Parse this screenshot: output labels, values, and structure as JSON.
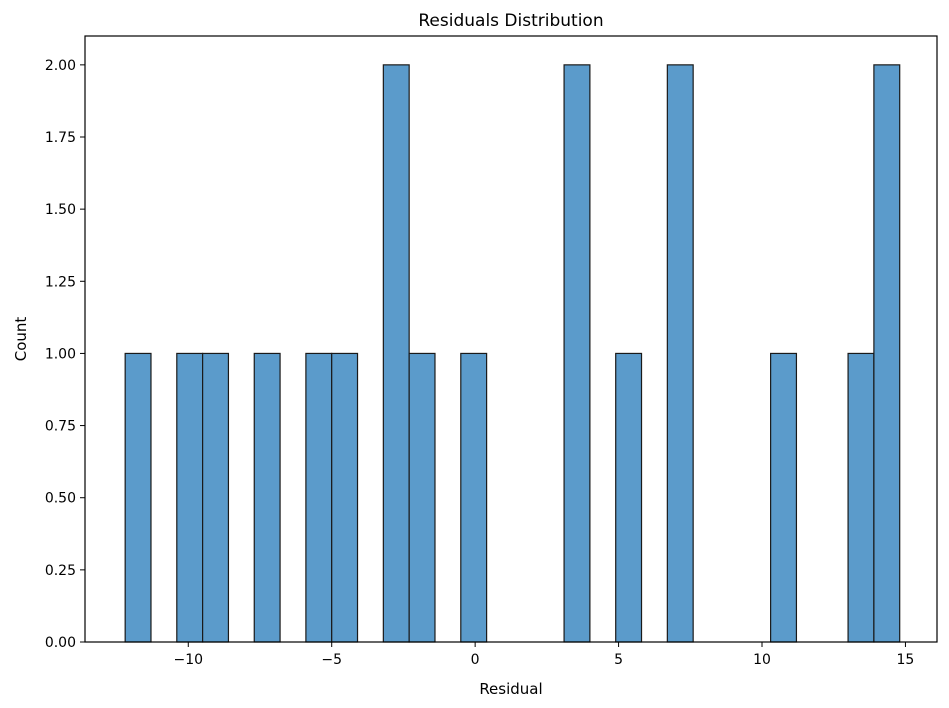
{
  "chart_data": {
    "type": "bar",
    "title": "Residuals Distribution",
    "xlabel": "Residual",
    "ylabel": "Count",
    "xlim": [
      -13.6,
      16.1
    ],
    "ylim": [
      0,
      2.1
    ],
    "x_ticks": [
      {
        "value": -10,
        "label": "−10"
      },
      {
        "value": -5,
        "label": "−5"
      },
      {
        "value": 0,
        "label": "0"
      },
      {
        "value": 5,
        "label": "5"
      },
      {
        "value": 10,
        "label": "10"
      },
      {
        "value": 15,
        "label": "15"
      }
    ],
    "y_ticks": [
      {
        "value": 0,
        "label": "0.00"
      },
      {
        "value": 0.25,
        "label": "0.25"
      },
      {
        "value": 0.5,
        "label": "0.50"
      },
      {
        "value": 0.75,
        "label": "0.75"
      },
      {
        "value": 1.0,
        "label": "1.00"
      },
      {
        "value": 1.25,
        "label": "1.25"
      },
      {
        "value": 1.5,
        "label": "1.50"
      },
      {
        "value": 1.75,
        "label": "1.75"
      },
      {
        "value": 2.0,
        "label": "2.00"
      }
    ],
    "grid": false,
    "bar_color": "#5b9bcb",
    "edge_color": "#1a1a1a",
    "bins": [
      {
        "start": -12.2,
        "end": -11.3,
        "count": 1
      },
      {
        "start": -10.4,
        "end": -9.5,
        "count": 1
      },
      {
        "start": -9.5,
        "end": -8.6,
        "count": 1
      },
      {
        "start": -7.7,
        "end": -6.8,
        "count": 1
      },
      {
        "start": -5.9,
        "end": -5.0,
        "count": 1
      },
      {
        "start": -5.0,
        "end": -4.1,
        "count": 1
      },
      {
        "start": -3.2,
        "end": -2.3,
        "count": 2
      },
      {
        "start": -2.3,
        "end": -1.4,
        "count": 1
      },
      {
        "start": -0.5,
        "end": 0.4,
        "count": 1
      },
      {
        "start": 3.1,
        "end": 4.0,
        "count": 2
      },
      {
        "start": 4.9,
        "end": 5.8,
        "count": 1
      },
      {
        "start": 6.7,
        "end": 7.6,
        "count": 2
      },
      {
        "start": 10.3,
        "end": 11.2,
        "count": 1
      },
      {
        "start": 13.0,
        "end": 13.9,
        "count": 1
      },
      {
        "start": 13.9,
        "end": 14.8,
        "count": 2
      }
    ]
  }
}
